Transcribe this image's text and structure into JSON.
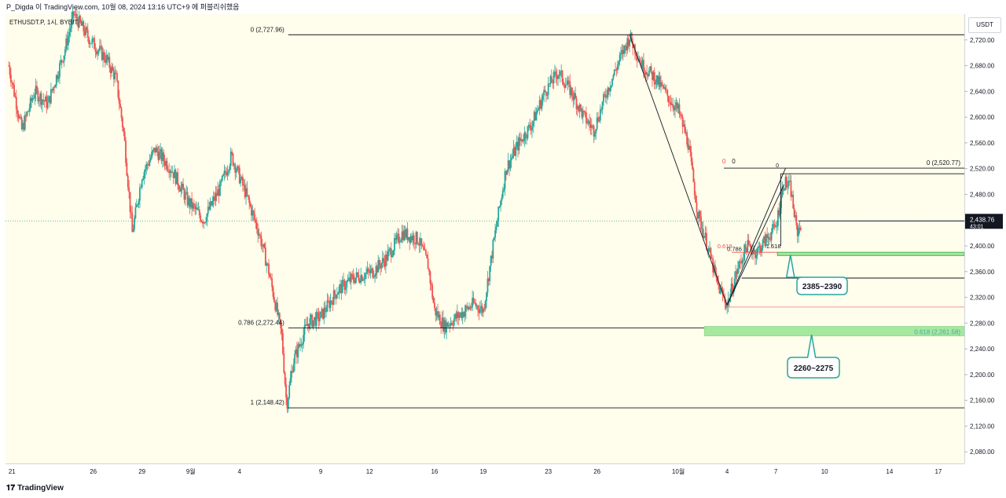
{
  "header": {
    "text": "P_Digda 이 TradingView.com, 10월 08, 2024 13:16 UTC+9 에 퍼블리쉬했음"
  },
  "symbol_label": "ETHUSDT.P, 1시, BYBIT",
  "currency": "USDT",
  "footer": {
    "brand": "TradingView",
    "logo_glyph": "𝟏𝟕"
  },
  "colors": {
    "bg": "#fffdeb",
    "up": "#26a69a",
    "down": "#ef5350",
    "zone_fill": "#a5e8a0",
    "zone_border": "#4caf50",
    "callout_border": "#26a69a",
    "price_tag": "#131722"
  },
  "chart_data": {
    "type": "candlestick",
    "title": "",
    "xlabel": "",
    "ylabel": "",
    "ylim": [
      2062,
      2760
    ],
    "y_ticks": [
      2080,
      2120,
      2160,
      2200,
      2240,
      2280,
      2320,
      2360,
      2400,
      2440,
      2480,
      2520,
      2560,
      2600,
      2640,
      2680,
      2720
    ],
    "y_tick_labels": [
      "2,080.00",
      "2,120.00",
      "2,160.00",
      "2,200.00",
      "2,240.00",
      "2,280.00",
      "2,320.00",
      "2,360.00",
      "2,400.00",
      "2,440.00",
      "2,480.00",
      "2,520.00",
      "2,560.00",
      "2,600.00",
      "2,640.00",
      "2,680.00",
      "2,720.00"
    ],
    "x_tick_labels": [
      "21",
      "26",
      "29",
      "9월",
      "4",
      "9",
      "12",
      "16",
      "19",
      "23",
      "26",
      "10월",
      "4",
      "7",
      "10",
      "14",
      "17"
    ],
    "x_tick_days": [
      -10,
      -5,
      -2,
      1,
      4,
      9,
      12,
      16,
      19,
      23,
      26,
      31,
      34,
      37,
      40,
      44,
      47
    ],
    "x_range_days": [
      -10.4,
      48.6
    ],
    "price_path": [
      [
        -10.2,
        2680
      ],
      [
        -9.4,
        2580
      ],
      [
        -8.6,
        2640
      ],
      [
        -7.8,
        2620
      ],
      [
        -6.8,
        2700
      ],
      [
        -6.2,
        2760
      ],
      [
        -5.2,
        2720
      ],
      [
        -4.2,
        2690
      ],
      [
        -3.6,
        2660
      ],
      [
        -3.1,
        2570
      ],
      [
        -2.6,
        2420
      ],
      [
        -2.0,
        2510
      ],
      [
        -1.2,
        2550
      ],
      [
        -0.2,
        2520
      ],
      [
        0.8,
        2470
      ],
      [
        1.8,
        2440
      ],
      [
        2.8,
        2490
      ],
      [
        3.5,
        2540
      ],
      [
        4.4,
        2480
      ],
      [
        5.2,
        2420
      ],
      [
        5.8,
        2360
      ],
      [
        6.6,
        2260
      ],
      [
        6.9,
        2152
      ],
      [
        7.3,
        2220
      ],
      [
        8.2,
        2280
      ],
      [
        9.0,
        2290
      ],
      [
        10.0,
        2330
      ],
      [
        11.0,
        2350
      ],
      [
        12.2,
        2360
      ],
      [
        13.0,
        2380
      ],
      [
        14.0,
        2420
      ],
      [
        15.0,
        2410
      ],
      [
        15.6,
        2370
      ],
      [
        16.0,
        2300
      ],
      [
        16.6,
        2275
      ],
      [
        17.4,
        2290
      ],
      [
        18.4,
        2310
      ],
      [
        19.0,
        2300
      ],
      [
        19.6,
        2400
      ],
      [
        20.4,
        2520
      ],
      [
        21.2,
        2560
      ],
      [
        22.0,
        2590
      ],
      [
        22.8,
        2640
      ],
      [
        23.6,
        2670
      ],
      [
        24.4,
        2640
      ],
      [
        25.2,
        2600
      ],
      [
        25.8,
        2580
      ],
      [
        26.6,
        2640
      ],
      [
        27.4,
        2690
      ],
      [
        28.0,
        2725
      ],
      [
        28.8,
        2680
      ],
      [
        29.6,
        2660
      ],
      [
        30.4,
        2630
      ],
      [
        31.0,
        2610
      ],
      [
        31.6,
        2560
      ],
      [
        32.2,
        2450
      ],
      [
        32.8,
        2400
      ],
      [
        33.4,
        2340
      ],
      [
        34.0,
        2308
      ],
      [
        34.6,
        2360
      ],
      [
        35.2,
        2400
      ],
      [
        35.8,
        2390
      ],
      [
        36.4,
        2410
      ],
      [
        37.0,
        2430
      ],
      [
        37.5,
        2500
      ],
      [
        37.9,
        2490
      ],
      [
        38.3,
        2420
      ],
      [
        38.6,
        2438.76
      ]
    ],
    "price_line": {
      "value": 2438.76,
      "label": "2,438.76",
      "countdown": "43:01"
    },
    "fib_large": {
      "levels": [
        {
          "label": "0 (2,727.96)",
          "value": 2727.96
        },
        {
          "label": "0.786 (2,272.44)",
          "value": 2272.44
        },
        {
          "label": "1 (2,148.42)",
          "value": 2148.42
        }
      ],
      "start_day": 7.0
    },
    "fib_small": {
      "levels": [
        {
          "label": "0 (2,520.77)",
          "value": 2520.77
        },
        {
          "label": "0.618 (2,261.58)",
          "value": 2261.58
        }
      ]
    },
    "annotations": {
      "red_0": "0",
      "black_0": "0",
      "small_0": "0",
      "red_618": "0.618",
      "label_0786": "0.786",
      "label_1618": "1.618"
    },
    "zones": [
      {
        "label": "2385~2390",
        "from": 2385,
        "to": 2390
      },
      {
        "label": "2260~2275",
        "from": 2260,
        "to": 2275
      }
    ],
    "horizontal_levels": [
      2438.76,
      2350,
      2305,
      2512
    ],
    "zigzag": [
      {
        "day": 28.0,
        "value": 2727.96
      },
      {
        "day": 34.0,
        "value": 2308
      },
      {
        "day": 37.6,
        "value": 2520.77
      }
    ]
  }
}
